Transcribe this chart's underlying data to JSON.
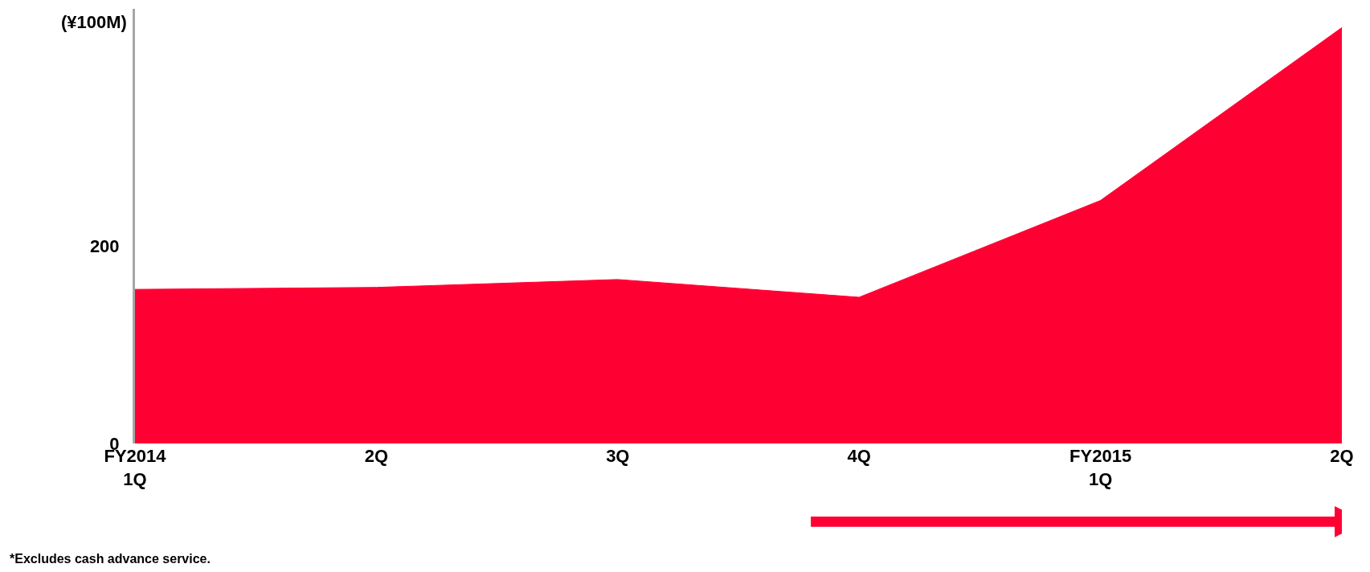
{
  "chart_data": {
    "type": "area",
    "ylabel": "(¥100M)",
    "categories": [
      "FY2014\n1Q",
      "2Q",
      "3Q",
      "4Q",
      "FY2015\n1Q",
      "2Q"
    ],
    "series": [
      {
        "color": "#ff0033",
        "values": [
          156,
          158,
          166,
          148,
          246,
          421
        ]
      }
    ],
    "ylim": [
      0,
      440
    ],
    "yticks": [
      0,
      200
    ],
    "annotations": [
      "*Excludes cash advance service."
    ]
  }
}
